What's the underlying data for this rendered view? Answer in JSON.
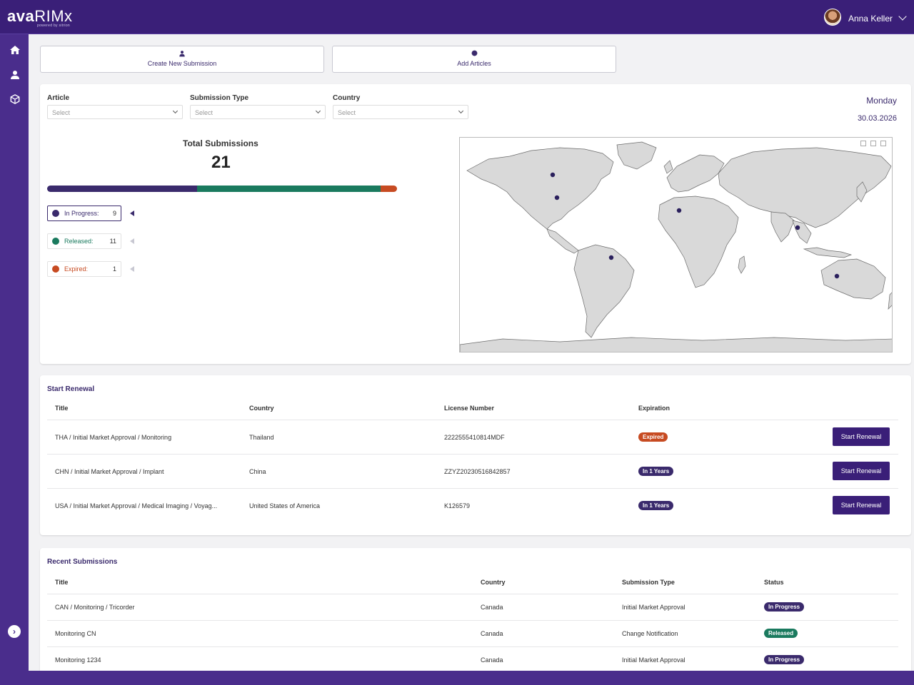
{
  "header": {
    "brand_bold": "ava",
    "brand_thin": "RIMx",
    "brand_tagline": "powered by sitrion",
    "user_name": "Anna Keller"
  },
  "sidebar": {
    "items": [
      {
        "name": "home",
        "icon": "home-icon"
      },
      {
        "name": "submissions",
        "icon": "users-icon"
      },
      {
        "name": "articles",
        "icon": "cube-icon"
      }
    ],
    "expand_icon": "chevron-right-icon"
  },
  "actions": {
    "create_submission": "Create New Submission",
    "add_articles": "Add Articles"
  },
  "filters": {
    "article": {
      "label": "Article",
      "placeholder": "Select"
    },
    "submission_type": {
      "label": "Submission Type",
      "placeholder": "Select"
    },
    "country": {
      "label": "Country",
      "placeholder": "Select"
    }
  },
  "date": {
    "day": "Monday",
    "value": "30.03.2026"
  },
  "summary": {
    "total_label": "Total Submissions",
    "total": "21",
    "statuses": [
      {
        "label": "In Progress:",
        "count": "9",
        "value": 9,
        "color": "#3a2a6c"
      },
      {
        "label": "Released:",
        "count": "11",
        "value": 11,
        "color": "#1a7a5e"
      },
      {
        "label": "Expired:",
        "count": "1",
        "value": 1,
        "color": "#c74b22"
      }
    ]
  },
  "map": {
    "markers": [
      "Canada",
      "United States of America",
      "Algeria",
      "Thailand",
      "Brazil",
      "Australia"
    ]
  },
  "renewal": {
    "title": "Start Renewal",
    "columns": [
      "Title",
      "Country",
      "License Number",
      "Expiration"
    ],
    "rows": [
      {
        "title": "THA / Initial Market Approval / Monitoring",
        "country": "Thailand",
        "license": "2222555410814MDF",
        "expiration": "Expired",
        "badge": "expired",
        "button": "Start Renewal"
      },
      {
        "title": "CHN / Initial Market Approval / Implant",
        "country": "China",
        "license": "ZZYZ20230516842857",
        "expiration": "In 1 Years",
        "badge": "years",
        "button": "Start Renewal"
      },
      {
        "title": "USA / Initial Market Approval / Medical Imaging / Voyag...",
        "country": "United States of America",
        "license": "K126579",
        "expiration": "In 1 Years",
        "badge": "years",
        "button": "Start Renewal"
      }
    ]
  },
  "recent": {
    "title": "Recent Submissions",
    "columns": [
      "Title",
      "Country",
      "Submission Type",
      "Status"
    ],
    "rows": [
      {
        "title": "CAN / Monitoring / Tricorder",
        "country": "Canada",
        "type": "Initial Market Approval",
        "status": "In Progress",
        "badge": "ip"
      },
      {
        "title": "Monitoring CN",
        "country": "Canada",
        "type": "Change Notification",
        "status": "Released",
        "badge": "rel"
      },
      {
        "title": "Monitoring 1234",
        "country": "Canada",
        "type": "Initial Market Approval",
        "status": "In Progress",
        "badge": "ip"
      }
    ]
  }
}
